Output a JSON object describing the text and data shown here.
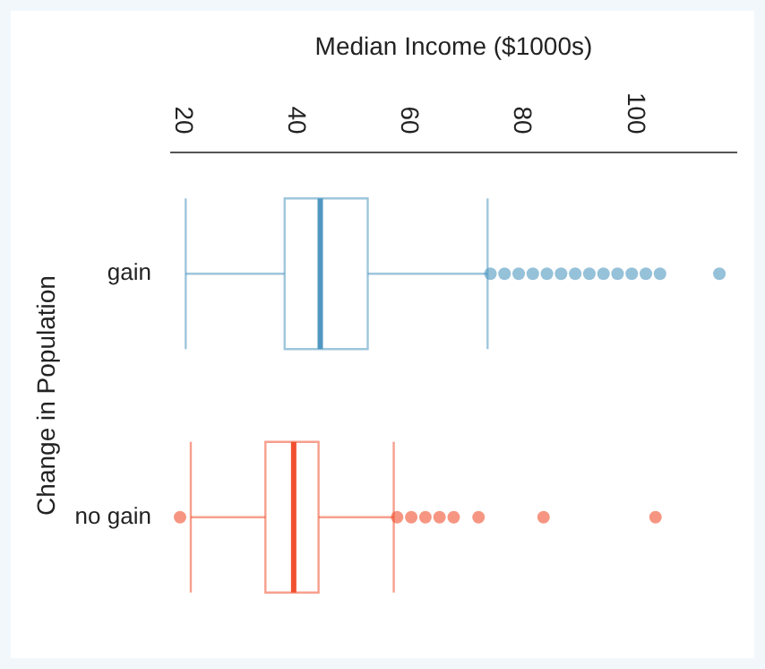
{
  "chart_data": {
    "type": "box",
    "orientation": "horizontal",
    "xlabel": "Median Income ($1000s)",
    "ylabel": "Change in Population",
    "categories": [
      "gain",
      "no gain"
    ],
    "colors": [
      "#4f97c0",
      "#f0502f"
    ],
    "boxes": [
      {
        "low": 20.6,
        "q1": 38.1,
        "median": 44.4,
        "q3": 52.8,
        "high": 74,
        "outliers": [
          74.5,
          77,
          79.5,
          82,
          84.5,
          87,
          89.5,
          92,
          94.5,
          97,
          99.5,
          102,
          104.5,
          115
        ]
      },
      {
        "low": 21.5,
        "q1": 34.7,
        "median": 39.7,
        "q3": 44.1,
        "high": 57.4,
        "outliers": [
          19.6,
          58,
          60.5,
          63,
          65.5,
          68,
          72.4,
          83.9,
          103.7
        ]
      }
    ],
    "xlim": [
      18,
      118
    ],
    "xticks": [
      20,
      40,
      60,
      80,
      100
    ],
    "grid": false,
    "legend": false
  }
}
